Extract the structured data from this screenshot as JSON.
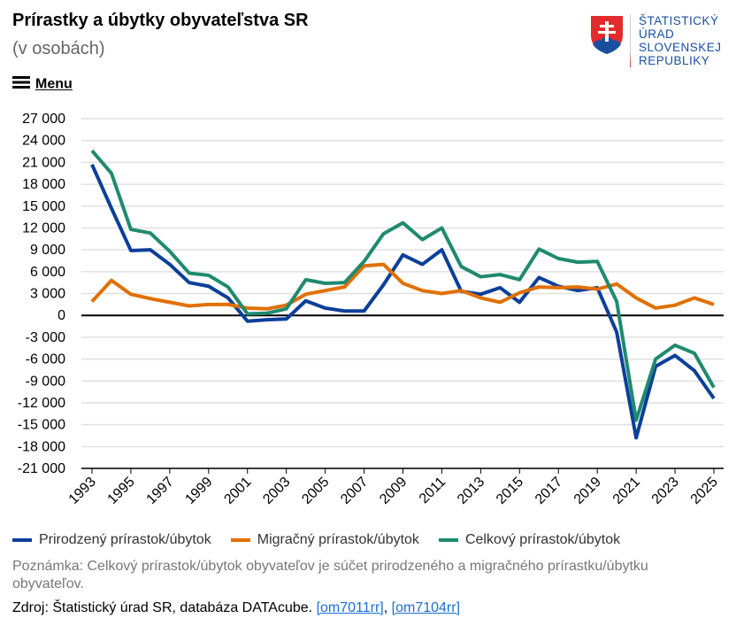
{
  "header": {
    "title": "Prírastky a úbytky obyvateľstva SR",
    "subtitle": "(v osobách)",
    "logo_text": [
      "ŠTATISTICKÝ",
      "ÚRAD",
      "SLOVENSKEJ",
      "REPUBLIKY"
    ],
    "menu_label": "Menu"
  },
  "chart_data": {
    "type": "line",
    "title": "Prírastky a úbytky obyvateľstva SR",
    "ylim": [
      -21000,
      27000
    ],
    "yticks": [
      27000,
      24000,
      21000,
      18000,
      15000,
      12000,
      9000,
      6000,
      3000,
      0,
      -3000,
      -6000,
      -9000,
      -12000,
      -15000,
      -18000,
      -21000
    ],
    "ytick_labels": [
      "27 000",
      "24 000",
      "21 000",
      "18 000",
      "15 000",
      "12 000",
      "9 000",
      "6 000",
      "3 000",
      "0",
      "-3 000",
      "-6 000",
      "-9 000",
      "-12 000",
      "-15 000",
      "-18 000",
      "-21 000"
    ],
    "x": [
      1993,
      1994,
      1995,
      1996,
      1997,
      1998,
      1999,
      2000,
      2001,
      2002,
      2003,
      2004,
      2005,
      2006,
      2007,
      2008,
      2009,
      2010,
      2011,
      2012,
      2013,
      2014,
      2015,
      2016,
      2017,
      2018,
      2019,
      2020,
      2021,
      2022,
      2023,
      2024,
      2025
    ],
    "xtick_labels": [
      "1993",
      "1995",
      "1997",
      "1999",
      "2001",
      "2003",
      "2005",
      "2007",
      "2009",
      "2011",
      "2013",
      "2015",
      "2017",
      "2019",
      "2021",
      "2023",
      "2025"
    ],
    "grid": true,
    "legend_position": "bottom",
    "series": [
      {
        "name": "Prirodzený prírastok/úbytok",
        "color": "#0b3f9a",
        "values": [
          20700,
          14700,
          8900,
          9000,
          7000,
          4500,
          4000,
          2400,
          -800,
          -600,
          -500,
          2000,
          1000,
          600,
          600,
          4200,
          8300,
          7000,
          9000,
          3300,
          2900,
          3800,
          1800,
          5200,
          4000,
          3400,
          3800,
          -2300,
          -16800,
          -7000,
          -5500,
          -7600,
          -11400
        ]
      },
      {
        "name": "Migračný prírastok/úbytok",
        "color": "#e07000",
        "values": [
          1900,
          4800,
          2900,
          2300,
          1800,
          1300,
          1500,
          1500,
          1000,
          900,
          1400,
          2900,
          3400,
          3900,
          6800,
          7000,
          4400,
          3400,
          3000,
          3400,
          2400,
          1800,
          3100,
          3900,
          3800,
          3900,
          3600,
          4300,
          2400,
          1000,
          1400,
          2400,
          1500
        ]
      },
      {
        "name": "Celkový prírastok/úbytok",
        "color": "#1f8a6e",
        "values": [
          22600,
          19500,
          11800,
          11300,
          8800,
          5800,
          5500,
          3900,
          200,
          300,
          900,
          4900,
          4400,
          4500,
          7400,
          11200,
          12700,
          10400,
          12000,
          6700,
          5300,
          5600,
          4900,
          9100,
          7800,
          7300,
          7400,
          1900,
          -14400,
          -6000,
          -4100,
          -5200,
          -9900
        ]
      }
    ]
  },
  "footer": {
    "note": "Poznámka: Celkový prírastok/úbytok obyvateľov je súčet prirodzeného a migračného prírastku/úbytku obyvateľov.",
    "source_prefix": "Zdroj: Štatistický úrad SR, databáza DATAcube. ",
    "link1": "[om7011rr]",
    "sep": ", ",
    "link2": "[om7104rr]"
  }
}
